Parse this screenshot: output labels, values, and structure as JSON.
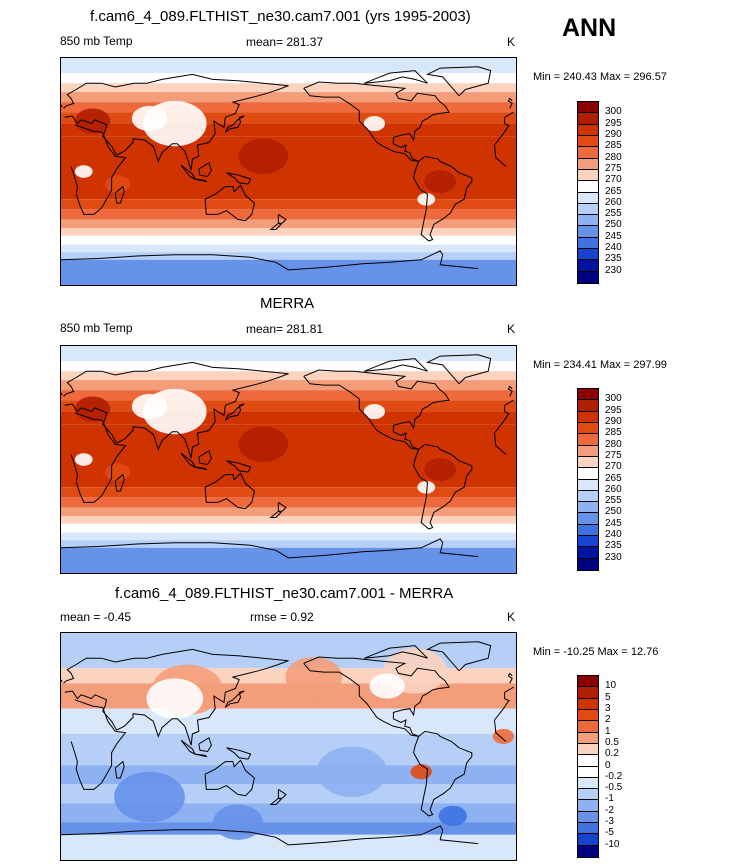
{
  "season": "ANN",
  "panels": [
    {
      "title": "f.cam6_4_089.FLTHIST_ne30.cam7.001 (yrs 1995-2003)",
      "left_label": "850 mb Temp",
      "center_label": "mean= 281.37",
      "units": "K",
      "minmax": "Min = 240.43 Max = 296.57",
      "kind": "temp",
      "levels": [
        "300",
        "295",
        "290",
        "285",
        "280",
        "275",
        "270",
        "265",
        "260",
        "255",
        "250",
        "245",
        "240",
        "235",
        "230"
      ],
      "colors": [
        "#8b0000",
        "#b01e00",
        "#cf3300",
        "#e04a13",
        "#ee6a3c",
        "#f49d7a",
        "#fbd3bf",
        "#ffffff",
        "#d9e7fb",
        "#b6cff7",
        "#8db1f1",
        "#6692ea",
        "#3e72e1",
        "#1744cf",
        "#0014a0",
        "#000080"
      ]
    },
    {
      "title": "MERRA",
      "left_label": "850 mb Temp",
      "center_label": "mean= 281.81",
      "units": "K",
      "minmax": "Min = 234.41 Max = 297.99",
      "kind": "temp",
      "levels": [
        "300",
        "295",
        "290",
        "285",
        "280",
        "275",
        "270",
        "265",
        "260",
        "255",
        "250",
        "245",
        "240",
        "235",
        "230"
      ],
      "colors": [
        "#8b0000",
        "#b01e00",
        "#cf3300",
        "#e04a13",
        "#ee6a3c",
        "#f49d7a",
        "#fbd3bf",
        "#ffffff",
        "#d9e7fb",
        "#b6cff7",
        "#8db1f1",
        "#6692ea",
        "#3e72e1",
        "#1744cf",
        "#0014a0",
        "#000080"
      ]
    },
    {
      "title": "f.cam6_4_089.FLTHIST_ne30.cam7.001 - MERRA",
      "left_label": "mean =  -0.45",
      "center_label": "rmse =   0.92",
      "units": "K",
      "minmax": "Min = -10.25 Max =  12.76",
      "kind": "diff",
      "levels": [
        "10",
        "5",
        "3",
        "2",
        "1",
        "0.5",
        "0.2",
        "0",
        "-0.2",
        "-0.5",
        "-1",
        "-2",
        "-3",
        "-5",
        "-10"
      ],
      "colors": [
        "#8b0000",
        "#b01e00",
        "#cf3300",
        "#e04a13",
        "#ee6a3c",
        "#f49d7a",
        "#fbd3bf",
        "#ffffff",
        "#ffffff",
        "#d9e7fb",
        "#b6cff7",
        "#8db1f1",
        "#6692ea",
        "#3e72e1",
        "#1744cf",
        "#000080"
      ]
    }
  ]
}
